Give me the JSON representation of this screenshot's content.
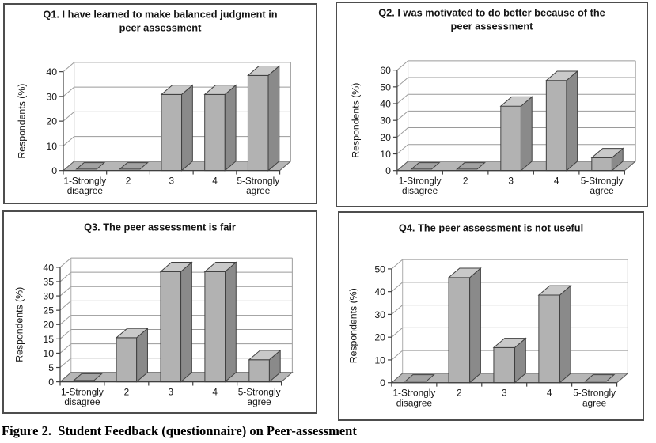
{
  "figure": {
    "caption": "Figure 2.  Student Feedback (questionnaire) on Peer-assessment"
  },
  "colors": {
    "panel_border": "#4d4d4d",
    "bar_front": "#b2b2b2",
    "bar_side": "#8a8a8a",
    "bar_top": "#c9c9c9",
    "bar_outline": "#3f3f3f",
    "floor": "#b6b6b6",
    "floor_outline": "#5a5a5a",
    "zero_pad": "#a2a2a2",
    "gridline": "#9a9a9a",
    "wall_edge": "#ababab",
    "axis": "#3f3f3f",
    "text": "#141414"
  },
  "chart_data": [
    {
      "id": "q1",
      "type": "bar",
      "title": "Q1. I have learned to make balanced judgment in peer assessment",
      "title_lines": [
        "Q1. I have learned to make balanced judgment in",
        "peer assessment"
      ],
      "ylabel": "Respondents (%)",
      "ylim": [
        0,
        40
      ],
      "ytick_step": 10,
      "grid": true,
      "legend": false,
      "categories": [
        "1-Strongly disagree",
        "2",
        "3",
        "4",
        "5-Strongly agree"
      ],
      "category_lines": [
        [
          "1-Strongly",
          "disagree"
        ],
        [
          "2"
        ],
        [
          "3"
        ],
        [
          "4"
        ],
        [
          "5-Strongly",
          "agree"
        ]
      ],
      "values": [
        0,
        0,
        30.8,
        30.8,
        38.5
      ]
    },
    {
      "id": "q2",
      "type": "bar",
      "title": "Q2. I was motivated to do better because of the peer assessment",
      "title_lines": [
        "Q2. I was motivated to do better because of the",
        "peer assessment"
      ],
      "ylabel": "Respondents (%)",
      "ylim": [
        0,
        60
      ],
      "ytick_step": 10,
      "grid": true,
      "legend": false,
      "categories": [
        "1-Strongly disagree",
        "2",
        "3",
        "4",
        "5-Strongly agree"
      ],
      "category_lines": [
        [
          "1-Strongly",
          "disagree"
        ],
        [
          "2"
        ],
        [
          "3"
        ],
        [
          "4"
        ],
        [
          "5-Strongly",
          "agree"
        ]
      ],
      "values": [
        0,
        0,
        38.5,
        53.8,
        7.7
      ]
    },
    {
      "id": "q3",
      "type": "bar",
      "title": "Q3. The peer assessment is fair",
      "title_lines": [
        "Q3. The peer assessment is fair"
      ],
      "ylabel": "Respondents (%)",
      "ylim": [
        0,
        40
      ],
      "ytick_step": 5,
      "grid": true,
      "legend": false,
      "categories": [
        "1-Strongly disagree",
        "2",
        "3",
        "4",
        "5-Strongly agree"
      ],
      "category_lines": [
        [
          "1-Strongly",
          "disagree"
        ],
        [
          "2"
        ],
        [
          "3"
        ],
        [
          "4"
        ],
        [
          "5-Strongly",
          "agree"
        ]
      ],
      "values": [
        0,
        15.4,
        38.5,
        38.5,
        7.7
      ]
    },
    {
      "id": "q4",
      "type": "bar",
      "title": "Q4. The peer assessment is not useful",
      "title_lines": [
        "Q4. The peer assessment is not useful"
      ],
      "ylabel": "Respondents (%)",
      "ylim": [
        0,
        50
      ],
      "ytick_step": 10,
      "grid": true,
      "legend": false,
      "categories": [
        "1-Strongly disagree",
        "2",
        "3",
        "4",
        "5-Strongly agree"
      ],
      "category_lines": [
        [
          "1-Strongly",
          "disagree"
        ],
        [
          "2"
        ],
        [
          "3"
        ],
        [
          "4"
        ],
        [
          "5-Strongly",
          "agree"
        ]
      ],
      "values": [
        0,
        46.2,
        15.4,
        38.5,
        0
      ]
    }
  ]
}
